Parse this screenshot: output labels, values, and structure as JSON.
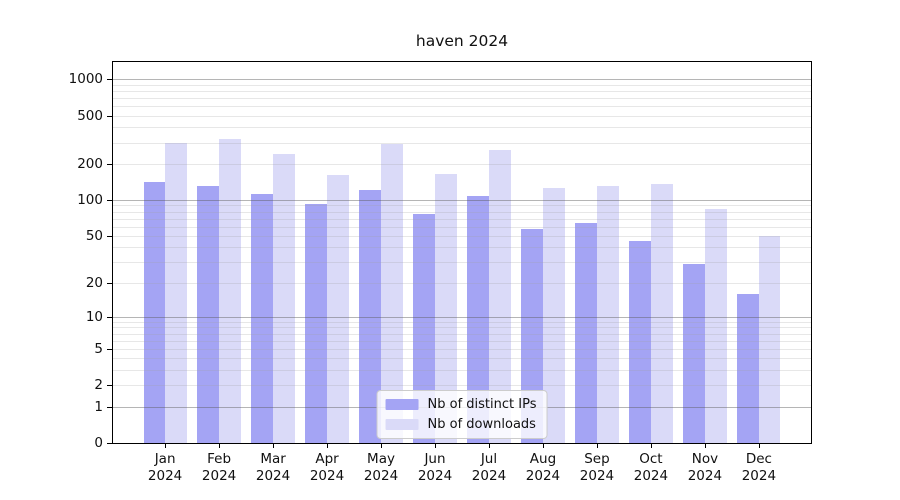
{
  "title": "haven 2024",
  "chart_data": {
    "type": "bar",
    "title": "haven 2024",
    "categories": [
      "Jan 2024",
      "Feb 2024",
      "Mar 2024",
      "Apr 2024",
      "May 2024",
      "Jun 2024",
      "Jul 2024",
      "Aug 2024",
      "Sep 2024",
      "Oct 2024",
      "Nov 2024",
      "Dec 2024"
    ],
    "series": [
      {
        "name": "Nb of distinct IPs",
        "color": "#a4a4f4",
        "values": [
          140,
          130,
          112,
          92,
          120,
          77,
          107,
          57,
          64,
          45,
          29,
          16
        ]
      },
      {
        "name": "Nb of downloads",
        "color": "#dadaf8",
        "values": [
          295,
          320,
          240,
          160,
          290,
          165,
          260,
          127,
          131,
          135,
          84,
          50
        ]
      }
    ],
    "xlabel": "",
    "ylabel": "",
    "yscale": "log10(1+y)",
    "yticks": [
      0,
      1,
      2,
      5,
      10,
      20,
      50,
      100,
      200,
      500,
      1000
    ],
    "ylim": [
      0,
      1388
    ],
    "grid": "on",
    "grid_major_color": "#b3b3b3",
    "grid_minor_color": "#e8e8e8",
    "legend_position": "lower center"
  }
}
